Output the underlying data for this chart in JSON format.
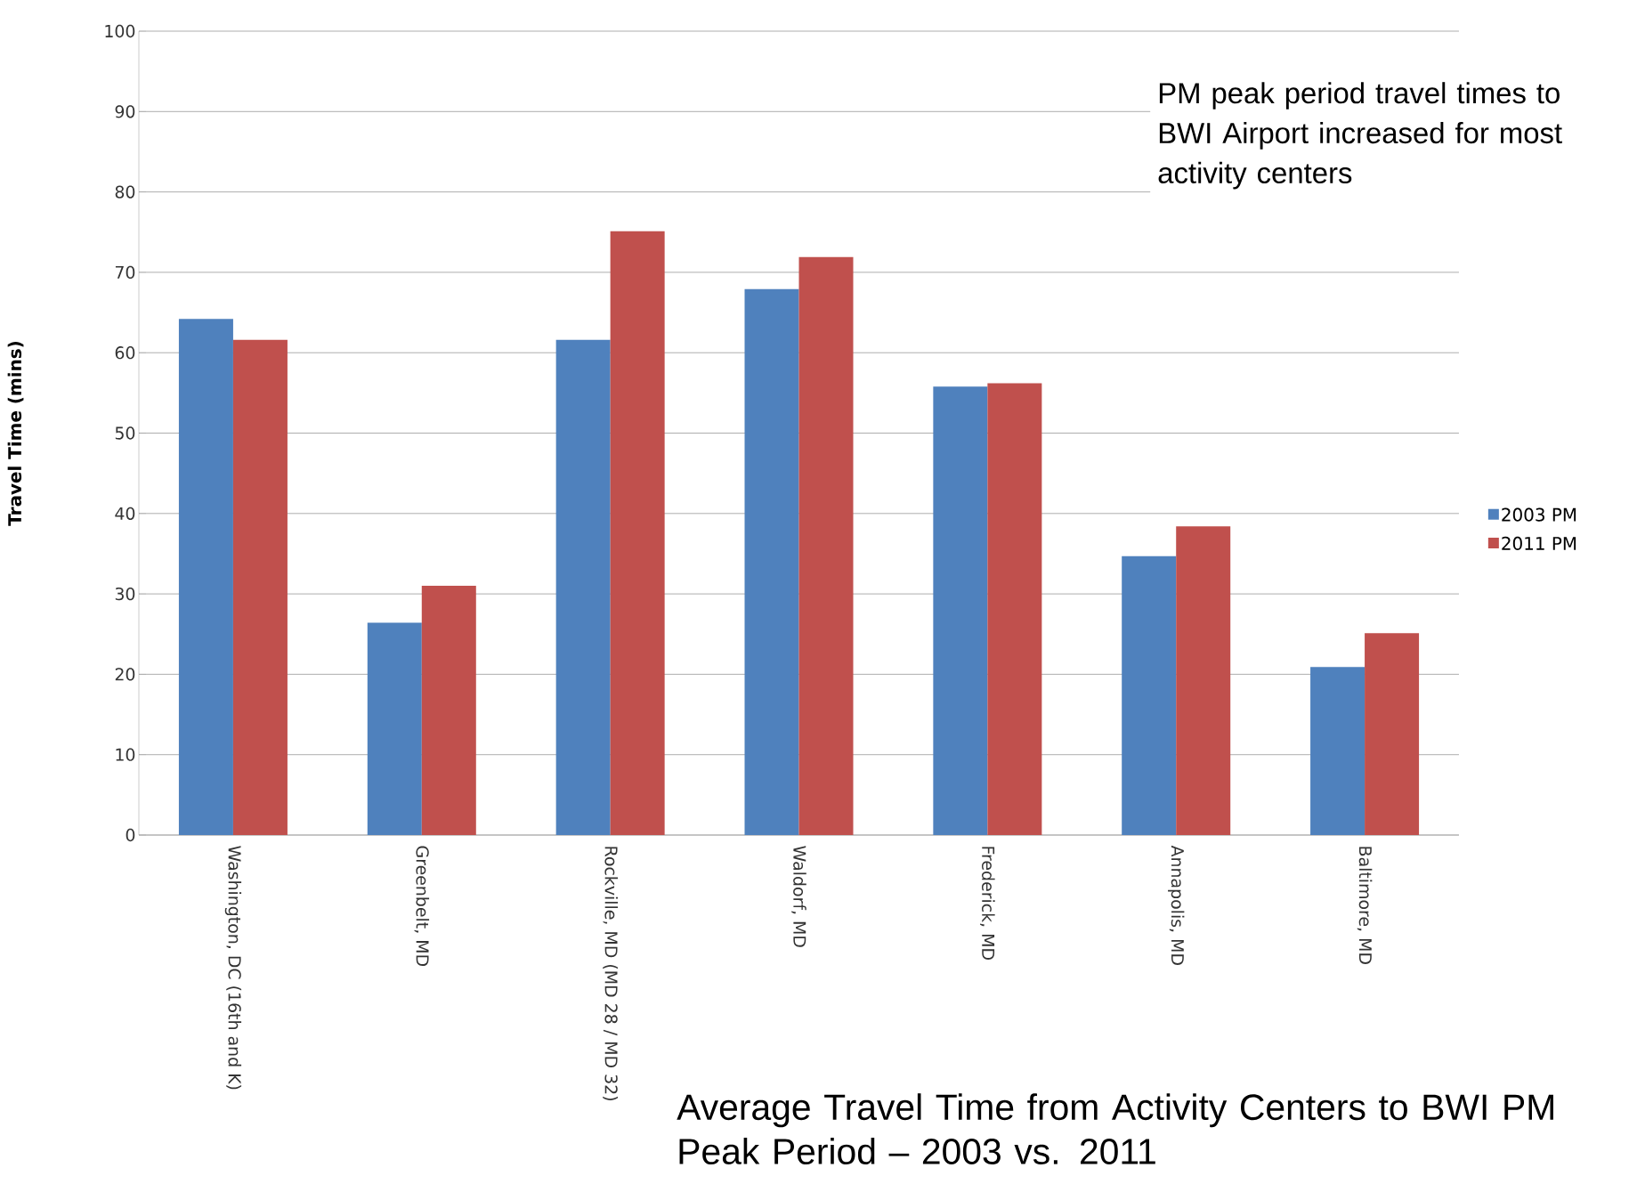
{
  "chart_data": {
    "type": "bar",
    "title": "Average Travel Time from Activity Centers to BWI PM Peak Period – 2003 vs. 2011",
    "ylabel": "Travel Time (mins)",
    "annotations": [
      "PM peak period travel times to BWI Airport increased for most activity centers"
    ],
    "categories": [
      "Washington, DC (16th and K)",
      "Greenbelt, MD",
      "Rockville, MD (MD 28 / MD 32)",
      "Waldorf, MD",
      "Frederick, MD",
      "Annapolis, MD",
      "Baltimore, MD"
    ],
    "series": [
      {
        "name": "2003 PM",
        "color": "#4f81bd",
        "values": [
          64.2,
          26.4,
          61.6,
          67.9,
          55.8,
          34.7,
          20.9
        ]
      },
      {
        "name": "2011 PM",
        "color": "#c0504d",
        "values": [
          61.6,
          31.0,
          75.1,
          71.9,
          56.2,
          38.4,
          25.1
        ]
      }
    ],
    "ylim": [
      0,
      100
    ],
    "yticks": [
      0,
      10,
      20,
      30,
      40,
      50,
      60,
      70,
      80,
      90,
      100
    ],
    "grid": "y",
    "legend": "right"
  }
}
